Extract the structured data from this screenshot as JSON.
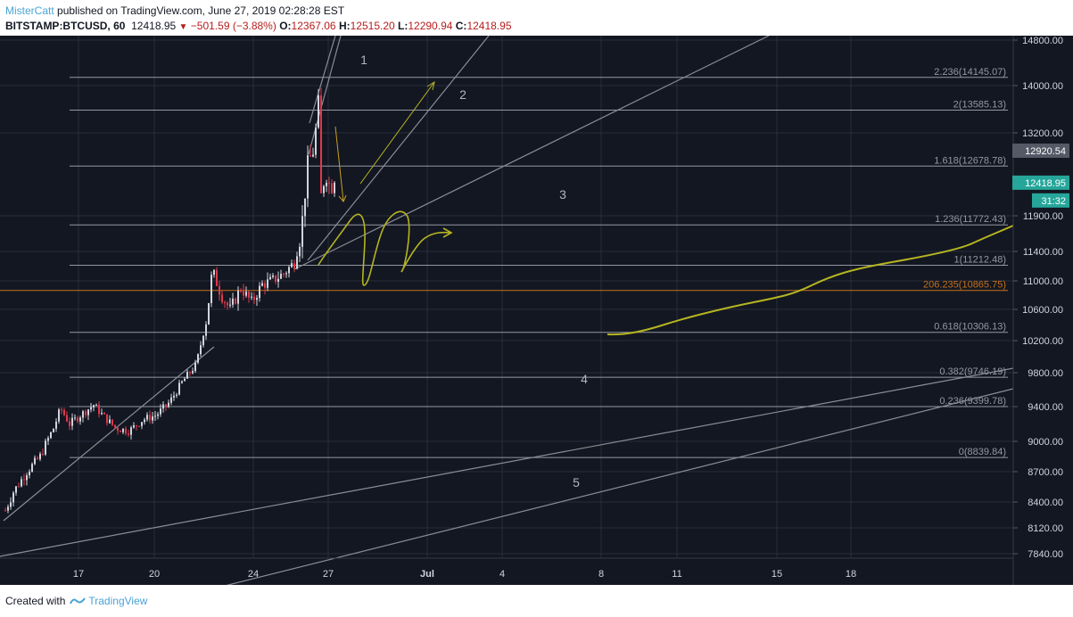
{
  "header": {
    "author": "MisterCatt",
    "published_text": "published on TradingView.com, June 27, 2019 02:28:28 EST",
    "symbol": "BITSTAMP:BTCUSD, 60",
    "last_price": "12418.95",
    "change": "−501.59 (−3.88%)",
    "o_label": "O:",
    "o_value": "12367.06",
    "h_label": "H:",
    "h_value": "12515.20",
    "l_label": "L:",
    "l_value": "12290.94",
    "c_label": "C:",
    "c_value": "12418.95"
  },
  "footer": {
    "created_with": "Created with",
    "brand": "TradingView"
  },
  "colors": {
    "background": "#131722",
    "grid": "#2a2e39",
    "up": "#d1d4dc",
    "down": "#e0394a",
    "fib": "#9598a1",
    "highlight_fib": "#c6701a",
    "drawing": "#b5b520",
    "trendline": "#8a8d95",
    "price_badge_dark": "#555966",
    "price_badge_teal": "#26a69a"
  },
  "chart_data": {
    "type": "candlestick",
    "interval": "60",
    "x_ticks": [
      "17",
      "20",
      "24",
      "27",
      "Jul",
      "4",
      "8",
      "11",
      "15",
      "18"
    ],
    "y_ticks": [
      "14800.00",
      "14000.00",
      "13200.00",
      "11900.00",
      "11400.00",
      "11000.00",
      "10600.00",
      "10200.00",
      "9800.00",
      "9400.00",
      "9000.00",
      "8700.00",
      "8400.00",
      "8120.00",
      "7840.00"
    ],
    "price_badges": [
      {
        "label": "12920.54",
        "price": 12920.54,
        "style": "dark"
      },
      {
        "label": "12418.95",
        "price": 12418.95,
        "style": "teal"
      },
      {
        "label": "31:32",
        "price": 12140,
        "style": "teal"
      }
    ],
    "fib_levels": [
      {
        "label": "2.236(14145.07)",
        "price": 14145.07
      },
      {
        "label": "2(13585.13)",
        "price": 13585.13
      },
      {
        "label": "1.618(12678.78)",
        "price": 12678.78
      },
      {
        "label": "1.236(11772.43)",
        "price": 11772.43
      },
      {
        "label": "1(11212.48)",
        "price": 11212.48
      },
      {
        "label": "206.235(10865.75)",
        "price": 10865.75,
        "highlight": true
      },
      {
        "label": "0.618(10306.13)",
        "price": 10306.13
      },
      {
        "label": "0.382(9746.19)",
        "price": 9746.19
      },
      {
        "label": "0.236(9399.78)",
        "price": 9399.78
      },
      {
        "label": "0(8839.84)",
        "price": 8839.84
      }
    ],
    "trendline_labels": [
      "1",
      "2",
      "3",
      "4",
      "5"
    ],
    "price_path": [
      [
        0,
        8180
      ],
      [
        15,
        8500
      ],
      [
        30,
        8700
      ],
      [
        45,
        8850
      ],
      [
        60,
        9150
      ],
      [
        68,
        9380
      ],
      [
        78,
        9200
      ],
      [
        90,
        9300
      ],
      [
        105,
        9420
      ],
      [
        115,
        9300
      ],
      [
        130,
        9150
      ],
      [
        145,
        9120
      ],
      [
        160,
        9250
      ],
      [
        175,
        9300
      ],
      [
        190,
        9450
      ],
      [
        205,
        9700
      ],
      [
        220,
        9900
      ],
      [
        232,
        10500
      ],
      [
        238,
        11150
      ],
      [
        248,
        10800
      ],
      [
        258,
        10600
      ],
      [
        270,
        10900
      ],
      [
        282,
        10700
      ],
      [
        294,
        10950
      ],
      [
        305,
        11000
      ],
      [
        318,
        11100
      ],
      [
        330,
        11250
      ],
      [
        338,
        11700
      ],
      [
        345,
        12700
      ],
      [
        352,
        12950
      ],
      [
        357,
        13700
      ],
      [
        360,
        12200
      ],
      [
        365,
        12600
      ],
      [
        370,
        12350
      ],
      [
        375,
        12419
      ]
    ]
  }
}
